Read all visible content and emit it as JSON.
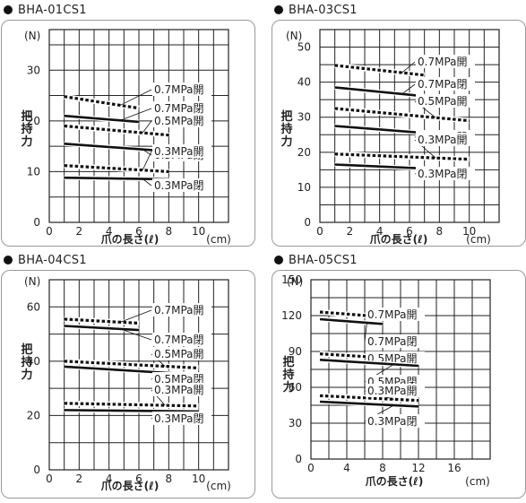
{
  "chart_data": [
    {
      "type": "line",
      "title": "BHA-01CS1",
      "xlabel": "爪の長さ(ℓ)",
      "x_unit": "(cm)",
      "ylabel": "把持力",
      "y_unit": "(N)",
      "xlim": [
        0,
        12
      ],
      "ylim": [
        0,
        38
      ],
      "xticks": [
        0,
        2,
        4,
        6,
        8,
        10
      ],
      "yticks": [
        0,
        10,
        20,
        30
      ],
      "grid": true,
      "series": [
        {
          "name": "0.7MPa開",
          "style": "dashed",
          "x": [
            1,
            6
          ],
          "y": [
            24.8,
            22.5
          ]
        },
        {
          "name": "0.7MPa閉",
          "style": "solid",
          "x": [
            1,
            6
          ],
          "y": [
            21.0,
            19.8
          ]
        },
        {
          "name": "0.5MPa開",
          "style": "dashed",
          "x": [
            1,
            8
          ],
          "y": [
            19.0,
            17.2
          ]
        },
        {
          "name": "0.5MPa閉",
          "style": "solid",
          "x": [
            1,
            8
          ],
          "y": [
            15.5,
            14.0
          ]
        },
        {
          "name": "0.3MPa開",
          "style": "dashed",
          "x": [
            1,
            8
          ],
          "y": [
            11.2,
            10.0
          ]
        },
        {
          "name": "0.3MPa閉",
          "style": "solid",
          "x": [
            1,
            8
          ],
          "y": [
            8.8,
            8.5
          ]
        }
      ]
    },
    {
      "type": "line",
      "title": "BHA-03CS1",
      "xlabel": "爪の長さ(ℓ)",
      "x_unit": "(cm)",
      "ylabel": "把持力",
      "y_unit": "(N)",
      "xlim": [
        0,
        12
      ],
      "ylim": [
        0,
        55
      ],
      "xticks": [
        0,
        2,
        4,
        6,
        8,
        10
      ],
      "yticks": [
        0,
        10,
        20,
        30,
        40,
        50
      ],
      "grid": true,
      "series": [
        {
          "name": "0.7MPa開",
          "style": "dashed",
          "x": [
            1,
            7
          ],
          "y": [
            44.8,
            42.0
          ]
        },
        {
          "name": "0.7MPa閉",
          "style": "solid",
          "x": [
            1,
            7
          ],
          "y": [
            38.5,
            36.0
          ]
        },
        {
          "name": "0.5MPa開",
          "style": "dashed",
          "x": [
            1,
            10
          ],
          "y": [
            32.5,
            29.0
          ]
        },
        {
          "name": "0.5MPa閉",
          "style": "solid",
          "x": [
            1,
            10
          ],
          "y": [
            27.5,
            24.5
          ]
        },
        {
          "name": "0.3MPa開",
          "style": "dashed",
          "x": [
            1,
            10
          ],
          "y": [
            19.5,
            18.0
          ]
        },
        {
          "name": "0.3MPa閉",
          "style": "solid",
          "x": [
            1,
            10
          ],
          "y": [
            16.5,
            14.8
          ]
        }
      ]
    },
    {
      "type": "line",
      "title": "BHA-04CS1",
      "xlabel": "爪の長さ(ℓ)",
      "x_unit": "(cm)",
      "ylabel": "把持力",
      "y_unit": "(N)",
      "xlim": [
        0,
        12
      ],
      "ylim": [
        0,
        70
      ],
      "xticks": [
        0,
        2,
        4,
        6,
        8,
        10
      ],
      "yticks": [
        0,
        20,
        40,
        60
      ],
      "grid": true,
      "series": [
        {
          "name": "0.7MPa開",
          "style": "dashed",
          "x": [
            1,
            6
          ],
          "y": [
            55.5,
            54.0
          ]
        },
        {
          "name": "0.7MPa閉",
          "style": "solid",
          "x": [
            1,
            6
          ],
          "y": [
            53.0,
            51.5
          ]
        },
        {
          "name": "0.5MPa開",
          "style": "dashed",
          "x": [
            1,
            10
          ],
          "y": [
            40.0,
            37.5
          ]
        },
        {
          "name": "0.5MPa閉",
          "style": "solid",
          "x": [
            1,
            10
          ],
          "y": [
            38.0,
            35.0
          ]
        },
        {
          "name": "0.3MPa開",
          "style": "dashed",
          "x": [
            1,
            10
          ],
          "y": [
            24.5,
            23.5
          ]
        },
        {
          "name": "0.3MPa閉",
          "style": "solid",
          "x": [
            1,
            10
          ],
          "y": [
            22.0,
            21.5
          ]
        }
      ]
    },
    {
      "type": "line",
      "title": "BHA-05CS1",
      "xlabel": "爪の長さ(ℓ)",
      "x_unit": "(cm)",
      "ylabel": "把持力",
      "y_unit": "(N)",
      "xlim": [
        0,
        20
      ],
      "ylim": [
        0,
        150
      ],
      "xticks": [
        0,
        4,
        8,
        12,
        16
      ],
      "yticks": [
        0,
        30,
        60,
        90,
        120,
        150
      ],
      "grid": true,
      "series": [
        {
          "name": "0.7MPa開",
          "style": "dashed",
          "x": [
            1,
            8
          ],
          "y": [
            123,
            119
          ]
        },
        {
          "name": "0.7MPa閉",
          "style": "solid",
          "x": [
            1,
            8
          ],
          "y": [
            117,
            113
          ]
        },
        {
          "name": "0.5MPa開",
          "style": "dashed",
          "x": [
            1,
            12
          ],
          "y": [
            88,
            83
          ]
        },
        {
          "name": "0.5MPa閉",
          "style": "solid",
          "x": [
            1,
            12
          ],
          "y": [
            83,
            78
          ]
        },
        {
          "name": "0.3MPa開",
          "style": "dashed",
          "x": [
            1,
            12
          ],
          "y": [
            53,
            49
          ]
        },
        {
          "name": "0.3MPa閉",
          "style": "solid",
          "x": [
            1,
            12
          ],
          "y": [
            48,
            44
          ]
        }
      ]
    }
  ]
}
